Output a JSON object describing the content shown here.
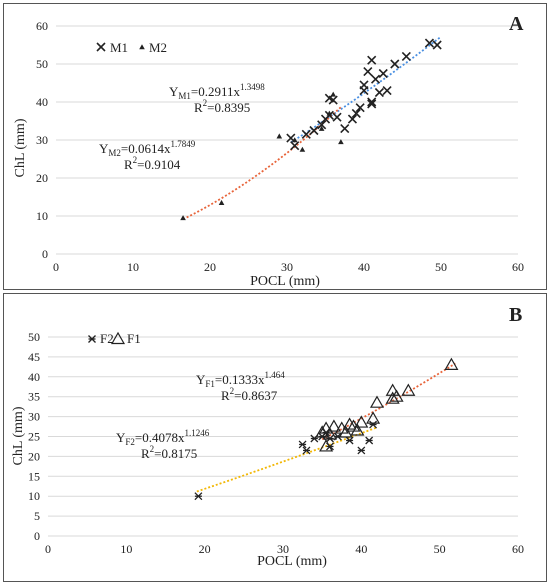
{
  "chart_data": [
    {
      "panel": "A",
      "type": "scatter",
      "xlabel": "POCL (mm)",
      "ylabel": "ChL (mm)",
      "xlim": [
        0,
        60
      ],
      "ylim": [
        0,
        60
      ],
      "xticks": [
        0,
        10,
        20,
        30,
        40,
        50,
        60
      ],
      "yticks": [
        0,
        10,
        20,
        30,
        40,
        50,
        60
      ],
      "grid": "horizontal",
      "legend_position": "top-left",
      "series": [
        {
          "name": "M1",
          "marker": "x",
          "color": "#222222",
          "points": [
            [
              30.5,
              30.5
            ],
            [
              31.0,
              28.5
            ],
            [
              32.5,
              31.5
            ],
            [
              33.5,
              32.5
            ],
            [
              34.5,
              34.0
            ],
            [
              35.0,
              35.5
            ],
            [
              35.5,
              36.5
            ],
            [
              35.5,
              41.0
            ],
            [
              36.0,
              40.5
            ],
            [
              36.5,
              36.0
            ],
            [
              37.5,
              33.0
            ],
            [
              38.5,
              35.5
            ],
            [
              39.0,
              37.0
            ],
            [
              39.5,
              38.5
            ],
            [
              40.0,
              44.5
            ],
            [
              40.0,
              43.0
            ],
            [
              40.5,
              48.0
            ],
            [
              41.0,
              51.0
            ],
            [
              41.0,
              39.5
            ],
            [
              41.5,
              46.0
            ],
            [
              42.0,
              42.5
            ],
            [
              42.5,
              47.5
            ],
            [
              43.0,
              43.0
            ],
            [
              44.0,
              50.0
            ],
            [
              45.5,
              52.0
            ],
            [
              48.5,
              55.5
            ],
            [
              49.5,
              55.0
            ],
            [
              41.0,
              40.0
            ]
          ]
        },
        {
          "name": "M2",
          "marker": "triangle",
          "color": "#222222",
          "points": [
            [
              16.5,
              9.5
            ],
            [
              21.5,
              13.5
            ],
            [
              29.0,
              31.0
            ],
            [
              31.0,
              30.0
            ],
            [
              32.0,
              27.5
            ],
            [
              34.5,
              33.0
            ],
            [
              35.5,
              37.0
            ],
            [
              36.0,
              42.0
            ],
            [
              37.0,
              29.5
            ]
          ]
        }
      ],
      "trendlines": [
        {
          "series": "M1",
          "a": 0.2911,
          "b": 1.3498,
          "x_range": [
            30.5,
            50
          ],
          "color": "#4a90e2"
        },
        {
          "series": "M2",
          "a": 0.0614,
          "b": 1.7849,
          "x_range": [
            16.5,
            37
          ],
          "color": "#e8643a"
        }
      ],
      "equations": [
        {
          "series_sub": "M1",
          "coef": "0.2911x",
          "exp": "1.3498",
          "r2": "=0.8395"
        },
        {
          "series_sub": "M2",
          "coef": "0.0614x",
          "exp": "1.7849",
          "r2": "=0.9104"
        }
      ]
    },
    {
      "panel": "B",
      "type": "scatter",
      "xlabel": "POCL (mm)",
      "ylabel": "ChL (mm)",
      "xlim": [
        0,
        60
      ],
      "ylim": [
        0,
        50
      ],
      "xticks": [
        0,
        10,
        20,
        30,
        40,
        50,
        60
      ],
      "yticks": [
        0,
        5,
        10,
        15,
        20,
        25,
        30,
        35,
        40,
        45,
        50
      ],
      "grid": "horizontal",
      "legend_position": "top-left",
      "series": [
        {
          "name": "F2",
          "marker": "asterisk",
          "color": "#222222",
          "points": [
            [
              19.2,
              10.0
            ],
            [
              32.5,
              23.0
            ],
            [
              33.0,
              21.5
            ],
            [
              34.0,
              24.5
            ],
            [
              35.0,
              25.0
            ],
            [
              35.5,
              26.0
            ],
            [
              36.0,
              24.5
            ],
            [
              36.0,
              22.5
            ],
            [
              37.0,
              25.0
            ],
            [
              38.5,
              24.0
            ],
            [
              40.0,
              21.5
            ],
            [
              41.0,
              24.0
            ],
            [
              41.5,
              28.0
            ]
          ]
        },
        {
          "name": "F1",
          "marker": "open-triangle",
          "color": "#222222",
          "points": [
            [
              35.0,
              26.0
            ],
            [
              35.5,
              27.0
            ],
            [
              35.5,
              22.5
            ],
            [
              36.0,
              25.5
            ],
            [
              36.5,
              27.5
            ],
            [
              37.5,
              27.0
            ],
            [
              38.0,
              26.0
            ],
            [
              38.5,
              28.0
            ],
            [
              39.0,
              27.5
            ],
            [
              39.5,
              26.5
            ],
            [
              40.0,
              28.5
            ],
            [
              41.5,
              29.5
            ],
            [
              42.0,
              33.5
            ],
            [
              44.0,
              36.5
            ],
            [
              44.0,
              34.5
            ],
            [
              44.5,
              35.0
            ],
            [
              46.0,
              36.5
            ],
            [
              51.5,
              43.0
            ]
          ]
        }
      ],
      "trendlines": [
        {
          "series": "F1",
          "a": 0.1333,
          "b": 1.464,
          "x_range": [
            35,
            52
          ],
          "color": "#e8643a"
        },
        {
          "series": "F2",
          "a": 0.4078,
          "b": 1.1246,
          "x_range": [
            19,
            42
          ],
          "color": "#f2b705"
        }
      ],
      "equations": [
        {
          "series_sub": "F1",
          "coef": "0.1333x",
          "exp": "1.464",
          "r2": "=0.8637"
        },
        {
          "series_sub": "F2",
          "coef": "0.4078x",
          "exp": "1.1246",
          "r2": "=0.8175"
        }
      ]
    }
  ]
}
